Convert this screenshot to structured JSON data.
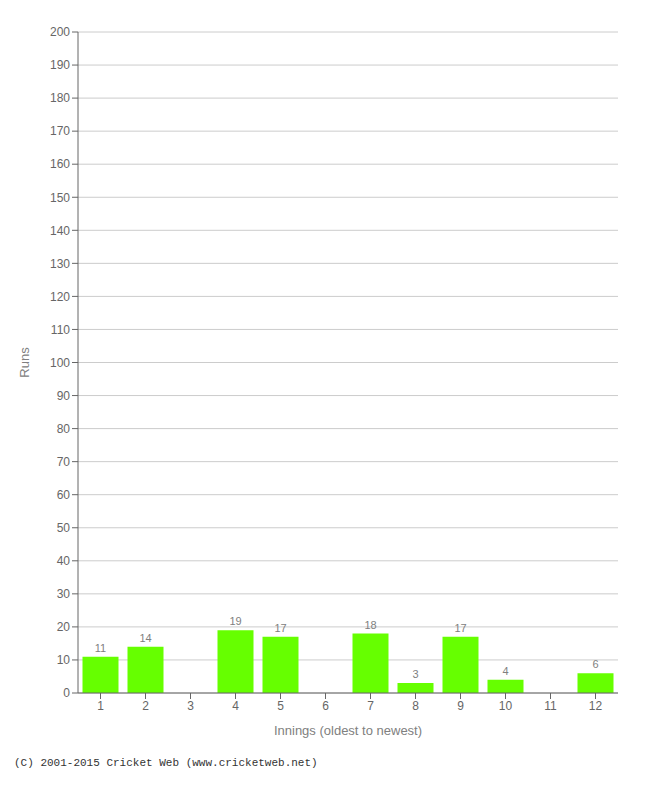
{
  "chart_data": {
    "type": "bar",
    "categories": [
      "1",
      "2",
      "3",
      "4",
      "5",
      "6",
      "7",
      "8",
      "9",
      "10",
      "11",
      "12"
    ],
    "values": [
      11,
      14,
      0,
      19,
      17,
      0,
      18,
      3,
      17,
      4,
      0,
      6
    ],
    "color": "#66ff00",
    "xlabel": "Innings (oldest to newest)",
    "ylabel": "Runs",
    "ylim": [
      0,
      200
    ],
    "yticks": [
      0,
      10,
      20,
      30,
      40,
      50,
      60,
      70,
      80,
      90,
      100,
      110,
      120,
      130,
      140,
      150,
      160,
      170,
      180,
      190,
      200
    ],
    "grid": true,
    "data_labels": true,
    "footer": "(C) 2001-2015 Cricket Web (www.cricketweb.net)"
  }
}
